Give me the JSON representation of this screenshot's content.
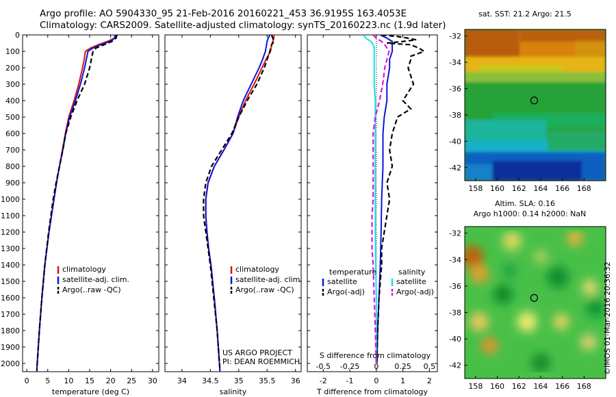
{
  "header": {
    "title_line1": "Argo profile: AO 5904330_95 21-Feb-2016 20160221_453 36.9195S 163.4053E",
    "title_line2": "Climatology: CARS2009. Satellite-adjusted climatology: synTS_20160223.nc (1.9d later)"
  },
  "project": {
    "line1": "US ARGO PROJECT",
    "line2": "PI: DEAN ROEMMICH"
  },
  "sst_title": "sat. SST: 21.2 Argo: 21.5",
  "sla_title1": "Altim. SLA: 0.16",
  "sla_title2": "Argo h1000: 0.14 h2000: NaN",
  "credit": "©IMOS 01-Mar-2016 20:36:32",
  "colors": {
    "climatology": "#e01010",
    "satellite": "#0a14d8",
    "argo": "#000000",
    "sat_salinity": "#10e0e8",
    "argo_salinity": "#e010e0"
  },
  "chart_data": [
    {
      "type": "line",
      "xlabel": "temperature (deg C)",
      "ylabel": "",
      "xlim": [
        -1,
        31.5
      ],
      "ylim": [
        2050,
        0
      ],
      "xticks": [
        "0",
        "5",
        "10",
        "15",
        "20",
        "25",
        "30"
      ],
      "yticks": [
        "0",
        "100",
        "200",
        "300",
        "400",
        "500",
        "600",
        "700",
        "800",
        "900",
        "1000",
        "1100",
        "1200",
        "1300",
        "1400",
        "1500",
        "1600",
        "1700",
        "1800",
        "1900",
        "2000"
      ],
      "legend": [
        "climatology",
        "satellite-adj. clim.",
        "Argo(..raw -QC)"
      ],
      "series": [
        {
          "name": "climatology",
          "depth": [
            0,
            20,
            40,
            60,
            80,
            100,
            150,
            200,
            300,
            400,
            500,
            600,
            700,
            800,
            900,
            1000,
            1200,
            1400,
            1600,
            1800,
            2000,
            2050
          ],
          "values": [
            21.0,
            20.9,
            19.2,
            17.0,
            15.2,
            14.0,
            13.7,
            13.3,
            12.4,
            11.3,
            10.0,
            9.2,
            8.5,
            7.8,
            7.1,
            6.5,
            5.3,
            4.3,
            3.6,
            3.0,
            2.5,
            2.4
          ]
        },
        {
          "name": "satellite-adj. clim.",
          "depth": [
            0,
            20,
            40,
            60,
            80,
            100,
            150,
            200,
            300,
            400,
            500,
            600,
            700,
            800,
            900,
            1000,
            1200,
            1400,
            1600,
            1800,
            2000,
            2050
          ],
          "values": [
            21.2,
            21.0,
            19.8,
            17.6,
            15.8,
            14.6,
            14.2,
            13.8,
            12.8,
            11.6,
            10.2,
            9.3,
            8.6,
            7.8,
            7.1,
            6.5,
            5.3,
            4.3,
            3.6,
            3.0,
            2.5,
            2.4
          ]
        },
        {
          "name": "Argo(..raw -QC)",
          "depth": [
            0,
            20,
            40,
            60,
            80,
            100,
            150,
            200,
            300,
            400,
            500,
            600,
            700,
            800,
            900,
            1000,
            1200,
            1400,
            1600,
            1800,
            2000,
            2040
          ],
          "values": [
            21.5,
            21.3,
            20.3,
            18.4,
            16.5,
            15.8,
            15.4,
            15.0,
            13.8,
            12.0,
            10.5,
            9.3,
            8.6,
            7.8,
            7.0,
            6.3,
            5.2,
            4.3,
            3.6,
            3.0,
            2.5,
            2.4
          ]
        }
      ]
    },
    {
      "type": "line",
      "xlabel": "salinity",
      "xlim": [
        33.7,
        36.1
      ],
      "ylim": [
        2050,
        0
      ],
      "xticks": [
        "34",
        "34.5",
        "35",
        "35.5",
        "36"
      ],
      "legend": [
        "climatology",
        "satellite-adj. clim.",
        "Argo(..raw -QC)"
      ],
      "series": [
        {
          "name": "climatology",
          "depth": [
            0,
            20,
            40,
            60,
            80,
            100,
            150,
            200,
            300,
            400,
            500,
            600,
            700,
            800,
            900,
            1000,
            1100,
            1200,
            1300,
            1400,
            1600,
            1800,
            2000,
            2050
          ],
          "values": [
            35.62,
            35.62,
            35.6,
            35.58,
            35.57,
            35.56,
            35.48,
            35.41,
            35.27,
            35.12,
            35.0,
            34.9,
            34.74,
            34.57,
            34.46,
            34.42,
            34.42,
            34.44,
            34.47,
            34.51,
            34.57,
            34.62,
            34.66,
            34.67
          ]
        },
        {
          "name": "satellite-adj. clim.",
          "depth": [
            0,
            20,
            40,
            60,
            80,
            100,
            150,
            200,
            300,
            400,
            500,
            600,
            700,
            800,
            900,
            1000,
            1100,
            1200,
            1300,
            1400,
            1600,
            1800,
            2000,
            2050
          ],
          "values": [
            35.55,
            35.52,
            35.5,
            35.49,
            35.48,
            35.47,
            35.42,
            35.36,
            35.22,
            35.08,
            34.98,
            34.9,
            34.74,
            34.57,
            34.46,
            34.42,
            34.42,
            34.44,
            34.47,
            34.51,
            34.57,
            34.62,
            34.66,
            34.67
          ]
        },
        {
          "name": "Argo(..raw -QC)",
          "depth": [
            0,
            20,
            40,
            60,
            80,
            100,
            150,
            200,
            300,
            400,
            500,
            600,
            700,
            800,
            900,
            1000,
            1100,
            1200,
            1300,
            1400,
            1600,
            1800,
            2000,
            2040
          ],
          "values": [
            35.58,
            35.6,
            35.62,
            35.58,
            35.56,
            35.55,
            35.5,
            35.45,
            35.32,
            35.15,
            35.0,
            34.88,
            34.7,
            34.52,
            34.42,
            34.38,
            34.38,
            34.42,
            34.46,
            34.5,
            34.56,
            34.62,
            34.66,
            34.67
          ]
        }
      ]
    },
    {
      "type": "line",
      "xlabel": "T difference from climatology",
      "xlabel_top": "S difference from climatology",
      "xlim": [
        -2.6,
        2.3
      ],
      "ylim": [
        2050,
        0
      ],
      "xticks": [
        "-2",
        "-1",
        "0",
        "1",
        "2"
      ],
      "xticks_s": [
        "-0.5",
        "-0.25",
        "0",
        "0.25",
        "0.5"
      ],
      "legend_headers": [
        "temperature",
        "salinity"
      ],
      "legend": [
        "satellite",
        "Argo(-adj)",
        "satellite",
        "Argo(-adj)"
      ],
      "series": [
        {
          "name": "satellite",
          "depth": [
            0,
            20,
            40,
            60,
            80,
            100,
            150,
            200,
            300,
            400,
            500,
            600,
            800,
            1000,
            1200,
            1400,
            1600,
            1800,
            2000
          ],
          "values": [
            0.15,
            0.4,
            0.6,
            0.6,
            0.6,
            0.6,
            0.5,
            0.5,
            0.4,
            0.4,
            0.3,
            0.25,
            0.25,
            0.2,
            0.18,
            0.15,
            0.1,
            0.05,
            0.02
          ]
        },
        {
          "name": "Argo(-adj)",
          "depth": [
            0,
            10,
            20,
            30,
            40,
            50,
            60,
            80,
            100,
            130,
            150,
            200,
            250,
            300,
            350,
            400,
            450,
            500,
            600,
            700,
            800,
            900,
            1000,
            1100,
            1200,
            1300,
            1400,
            1600,
            1800,
            2000
          ],
          "values": [
            0.2,
            0.8,
            1.2,
            1.5,
            1.0,
            0.4,
            1.3,
            1.6,
            1.8,
            1.3,
            1.3,
            1.2,
            1.3,
            1.4,
            1.2,
            1.0,
            1.3,
            0.8,
            0.6,
            0.5,
            0.6,
            0.4,
            0.5,
            0.4,
            0.3,
            0.2,
            0.2,
            0.1,
            0.05,
            0.02
          ]
        },
        {
          "name": "satellite",
          "depth": [
            0,
            20,
            40,
            60,
            80,
            100,
            150,
            200,
            300,
            400,
            500,
            600,
            800,
            1000,
            1200,
            1400,
            1600,
            1800,
            2000
          ],
          "values": [
            -0.12,
            -0.1,
            -0.05,
            -0.03,
            -0.02,
            -0.02,
            -0.02,
            -0.02,
            -0.02,
            -0.01,
            -0.01,
            -0.01,
            -0.01,
            -0.01,
            -0.01,
            -0.005,
            0,
            0,
            0
          ]
        },
        {
          "name": "Argo(-adj)",
          "depth": [
            0,
            20,
            40,
            60,
            80,
            100,
            150,
            200,
            300,
            400,
            500,
            600,
            800,
            1000,
            1100,
            1200,
            1300,
            1400,
            1600,
            1800,
            2000
          ],
          "values": [
            -0.03,
            0.0,
            0.05,
            0.08,
            0.1,
            0.12,
            0.1,
            0.08,
            0.06,
            0.03,
            -0.01,
            -0.03,
            -0.03,
            -0.03,
            -0.04,
            -0.04,
            -0.04,
            -0.03,
            -0.02,
            -0.01,
            0.0
          ]
        }
      ]
    },
    {
      "type": "heatmap",
      "title": "sat. SST: 21.2 Argo: 21.5",
      "xlim": [
        157,
        170
      ],
      "ylim": [
        -43,
        -31.5
      ],
      "xticks": [
        "158",
        "160",
        "162",
        "164",
        "166",
        "168"
      ],
      "yticks": [
        "-32",
        "-34",
        "-36",
        "-38",
        "-40",
        "-42"
      ],
      "marker": {
        "lon": 163.4,
        "lat": -36.9
      }
    },
    {
      "type": "heatmap",
      "title": "Altim. SLA: 0.16",
      "xlim": [
        157,
        170
      ],
      "ylim": [
        -43,
        -31.5
      ],
      "xticks": [
        "158",
        "160",
        "162",
        "164",
        "166",
        "168"
      ],
      "yticks": [
        "-32",
        "-34",
        "-36",
        "-38",
        "-40",
        "-42"
      ],
      "marker": {
        "lon": 163.4,
        "lat": -36.9
      }
    }
  ]
}
